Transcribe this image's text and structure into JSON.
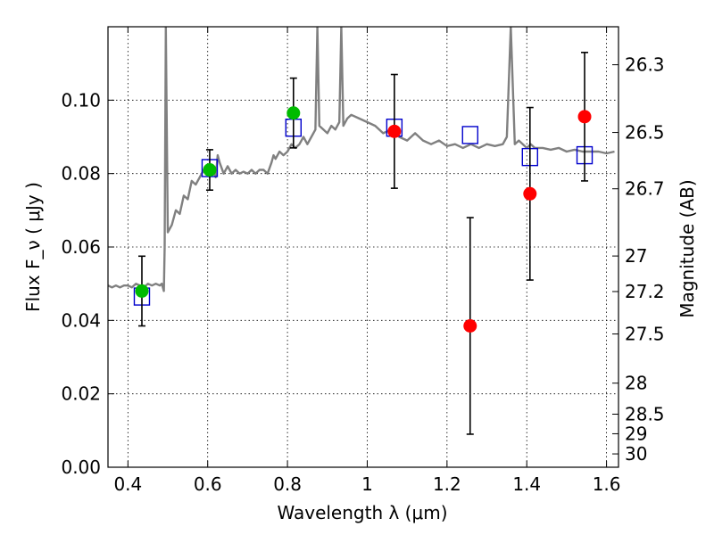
{
  "chart_data": {
    "type": "scatter",
    "title": "",
    "xlabel": "Wavelength  λ (μm)",
    "ylabel": "Flux  F_ν  ( μJy )",
    "y2label": "Magnitude (AB)",
    "xlim": [
      0.35,
      1.63
    ],
    "ylim": [
      0.0,
      0.12
    ],
    "grid": true,
    "x_ticks": [
      0.4,
      0.6,
      0.8,
      1.0,
      1.2,
      1.4,
      1.6
    ],
    "x_tick_labels": [
      "0.4",
      "0.6",
      "0.8",
      "1",
      "1.2",
      "1.4",
      "1.6"
    ],
    "y_ticks": [
      0.0,
      0.02,
      0.04,
      0.06,
      0.08,
      0.1
    ],
    "y_tick_labels": [
      "0.00",
      "0.02",
      "0.04",
      "0.06",
      "0.08",
      "0.10"
    ],
    "mag_ticks": [
      26.3,
      26.5,
      26.7,
      27,
      27.2,
      27.5,
      28,
      28.5,
      29,
      30
    ],
    "mag_tick_labels": [
      "26.3",
      "26.5",
      "26.7",
      "27",
      "27.2",
      "27.5",
      "28",
      "28.5",
      "29",
      "30"
    ],
    "colors": {
      "model": "#808080",
      "model_points": "#0000cc",
      "optical": "#00bb00",
      "nir": "#ff0000",
      "errorbar": "#000000"
    },
    "series": [
      {
        "kind": "line",
        "color_key": "model",
        "x": [
          0.35,
          0.36,
          0.37,
          0.38,
          0.39,
          0.4,
          0.41,
          0.42,
          0.43,
          0.44,
          0.45,
          0.46,
          0.47,
          0.48,
          0.485,
          0.49,
          0.492,
          0.495,
          0.5,
          0.51,
          0.52,
          0.53,
          0.54,
          0.55,
          0.56,
          0.57,
          0.58,
          0.585,
          0.59,
          0.6,
          0.61,
          0.62,
          0.625,
          0.63,
          0.64,
          0.65,
          0.655,
          0.66,
          0.67,
          0.68,
          0.69,
          0.7,
          0.71,
          0.72,
          0.73,
          0.74,
          0.75,
          0.76,
          0.765,
          0.77,
          0.78,
          0.79,
          0.8,
          0.81,
          0.82,
          0.83,
          0.84,
          0.85,
          0.86,
          0.87,
          0.875,
          0.88,
          0.89,
          0.9,
          0.91,
          0.92,
          0.93,
          0.935,
          0.94,
          0.95,
          0.96,
          0.98,
          1.0,
          1.02,
          1.04,
          1.06,
          1.08,
          1.1,
          1.12,
          1.14,
          1.16,
          1.18,
          1.2,
          1.22,
          1.24,
          1.26,
          1.28,
          1.3,
          1.32,
          1.34,
          1.35,
          1.36,
          1.37,
          1.38,
          1.4,
          1.41,
          1.42,
          1.44,
          1.46,
          1.48,
          1.5,
          1.52,
          1.54,
          1.56,
          1.58,
          1.6,
          1.62
        ],
        "y": [
          0.0495,
          0.049,
          0.0495,
          0.049,
          0.0495,
          0.0495,
          0.049,
          0.05,
          0.0495,
          0.049,
          0.05,
          0.0495,
          0.05,
          0.0495,
          0.05,
          0.048,
          0.06,
          0.12,
          0.064,
          0.066,
          0.07,
          0.069,
          0.074,
          0.073,
          0.078,
          0.077,
          0.079,
          0.08,
          0.081,
          0.08,
          0.082,
          0.079,
          0.085,
          0.083,
          0.08,
          0.082,
          0.081,
          0.08,
          0.081,
          0.08,
          0.0805,
          0.08,
          0.081,
          0.08,
          0.081,
          0.081,
          0.08,
          0.083,
          0.085,
          0.084,
          0.086,
          0.085,
          0.086,
          0.088,
          0.087,
          0.088,
          0.09,
          0.088,
          0.09,
          0.092,
          0.12,
          0.093,
          0.092,
          0.091,
          0.093,
          0.092,
          0.094,
          0.12,
          0.093,
          0.095,
          0.096,
          0.095,
          0.094,
          0.093,
          0.091,
          0.092,
          0.09,
          0.089,
          0.091,
          0.089,
          0.088,
          0.089,
          0.0875,
          0.088,
          0.087,
          0.088,
          0.087,
          0.088,
          0.0875,
          0.088,
          0.09,
          0.12,
          0.088,
          0.089,
          0.087,
          0.088,
          0.087,
          0.087,
          0.0865,
          0.087,
          0.086,
          0.0865,
          0.086,
          0.086,
          0.086,
          0.0855,
          0.086
        ],
        "name": ""
      },
      {
        "kind": "open-square",
        "color_key": "model_points",
        "x": [
          0.435,
          0.605,
          0.815,
          1.068,
          1.258,
          1.408,
          1.545
        ],
        "y": [
          0.0465,
          0.0815,
          0.0925,
          0.0925,
          0.0905,
          0.0845,
          0.085
        ],
        "name": ""
      },
      {
        "kind": "filled-circle",
        "color_key": "optical",
        "x": [
          0.435,
          0.605,
          0.815
        ],
        "y": [
          0.048,
          0.081,
          0.0965
        ],
        "yerr": [
          0.0095,
          0.0055,
          0.0095
        ],
        "name": ""
      },
      {
        "kind": "filled-circle",
        "color_key": "nir",
        "x": [
          1.068,
          1.258,
          1.408,
          1.545
        ],
        "y": [
          0.0915,
          0.0385,
          0.0745,
          0.0955
        ],
        "yerr": [
          0.0155,
          0.0295,
          0.0235,
          0.0175
        ],
        "name": ""
      }
    ]
  }
}
